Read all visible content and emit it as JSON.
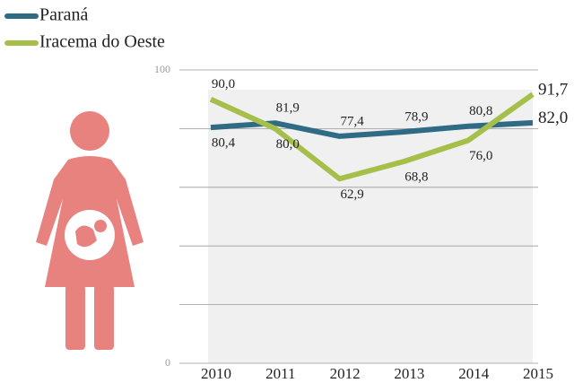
{
  "chart_data": {
    "type": "line",
    "categories": [
      "2010",
      "2011",
      "2012",
      "2013",
      "2014",
      "2015"
    ],
    "series": [
      {
        "name": "Paraná",
        "color": "#2f6b85",
        "values": [
          80.4,
          81.9,
          77.4,
          78.9,
          80.8,
          82.0
        ],
        "value_labels": [
          "80,4",
          "81,9",
          "77,4",
          "78,9",
          "80,8",
          "82,0"
        ]
      },
      {
        "name": "Iracema do Oeste",
        "color": "#a6bf4b",
        "values": [
          90.0,
          80.0,
          62.9,
          68.8,
          76.0,
          91.7
        ],
        "value_labels": [
          "90,0",
          "80,0",
          "62,9",
          "68,8",
          "76,0",
          "91,7"
        ]
      }
    ],
    "ylim": [
      0,
      100
    ],
    "yticks": [
      0,
      100
    ],
    "minor_yticks": [
      20,
      40,
      60,
      80
    ],
    "grid": true,
    "legend": "top-left"
  }
}
